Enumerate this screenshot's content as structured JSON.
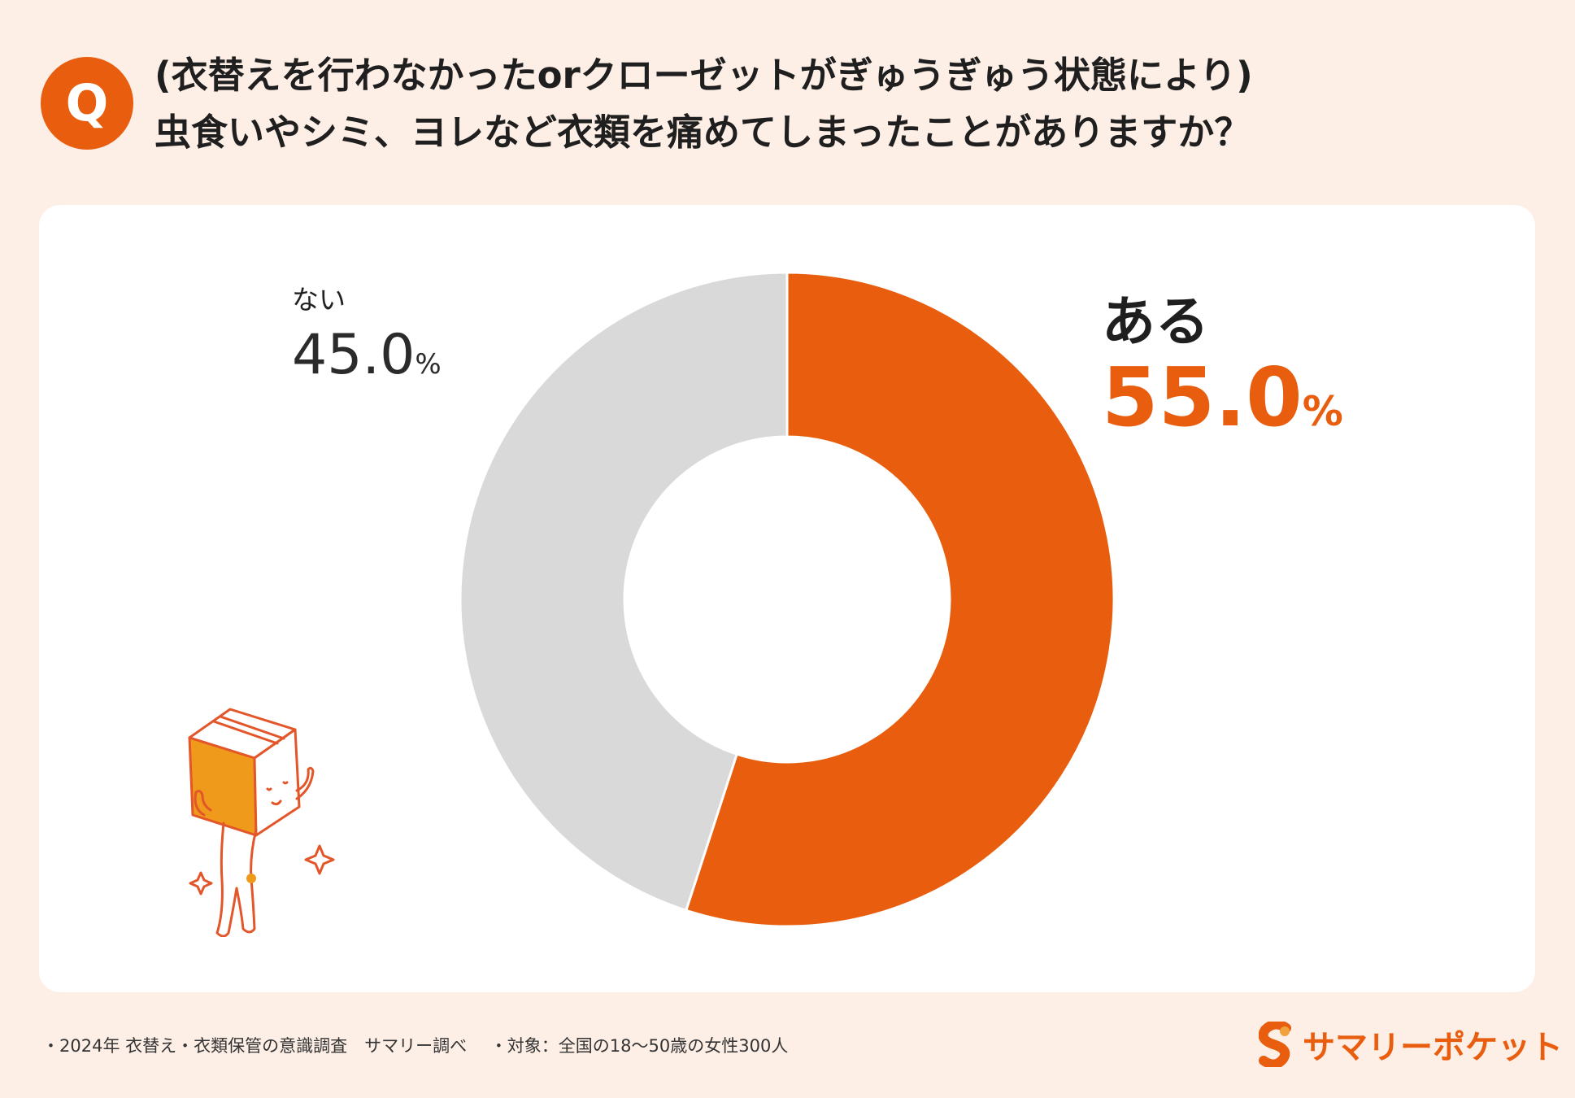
{
  "question": {
    "badge": "Q",
    "line1": "(衣替えを行わなかったorクローゼットがぎゅうぎゅう状態により)",
    "line2": "虫食いやシミ、ヨレなど衣類を痛めてしまったことがありますか？"
  },
  "chart_data": {
    "type": "pie",
    "variant": "donut",
    "categories": [
      "ある",
      "ない"
    ],
    "values": [
      55.0,
      45.0
    ],
    "value_labels": [
      "55.0",
      "45.0"
    ],
    "unit": "%",
    "colors": [
      "#e85e0e",
      "#d9d9d9"
    ],
    "title": ""
  },
  "footer": {
    "source": "・2024年 衣替え・衣類保管の意識調査　サマリー調べ",
    "target": "・対象：全国の18～50歳の女性300人"
  },
  "brand": {
    "name": "サマリーポケット",
    "color": "#e85e0e"
  }
}
